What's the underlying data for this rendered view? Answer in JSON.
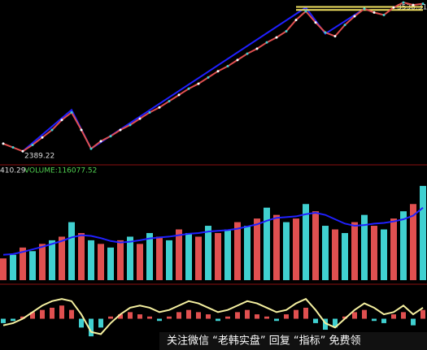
{
  "chart_data": [
    {
      "type": "line",
      "categories": [
        null,
        null,
        null,
        null,
        null,
        null,
        null,
        null,
        null,
        null,
        null,
        null,
        null,
        null,
        null,
        null,
        null,
        null,
        null,
        null,
        null,
        null,
        null,
        null,
        null,
        null,
        null,
        null,
        null,
        null,
        null,
        null,
        null,
        null,
        null,
        null,
        null,
        null,
        null,
        null,
        null,
        null,
        null,
        null
      ],
      "ylim": [
        2300,
        3600
      ],
      "annotations": [
        "2389.22",
        "3530.31"
      ],
      "series": [
        {
          "name": "price",
          "color": "#e05050",
          "values": [
            2450,
            2420,
            2389,
            2440,
            2500,
            2560,
            2640,
            2700,
            2560,
            2410,
            2470,
            2510,
            2560,
            2600,
            2650,
            2700,
            2740,
            2790,
            2840,
            2890,
            2930,
            2980,
            3030,
            3070,
            3120,
            3170,
            3210,
            3260,
            3300,
            3350,
            3440,
            3510,
            3420,
            3340,
            3310,
            3400,
            3470,
            3530,
            3500,
            3480,
            3540,
            3580,
            3560,
            3570
          ]
        }
      ],
      "lines": [
        {
          "color": "#2020ff",
          "x": [
            2,
            7,
            9,
            31,
            33,
            37
          ],
          "values": [
            2389,
            2720,
            2410,
            3540,
            3330,
            3530
          ]
        },
        {
          "color": "#f0e060",
          "x": [
            30,
            43
          ],
          "values": [
            3545,
            3545
          ]
        },
        {
          "color": "#f0e060",
          "x": [
            30,
            43
          ],
          "values": [
            3520,
            3520
          ]
        }
      ]
    },
    {
      "type": "bar",
      "header": [
        "410.29",
        "VOLUME:116077.52"
      ],
      "ylim": [
        0,
        280000
      ],
      "series": [
        {
          "name": "volume",
          "colors": [
            "#e05050",
            "#40d0d0"
          ],
          "values": [
            60000,
            70000,
            90000,
            80000,
            100000,
            110000,
            120000,
            160000,
            130000,
            110000,
            100000,
            90000,
            110000,
            120000,
            100000,
            130000,
            120000,
            110000,
            140000,
            130000,
            120000,
            150000,
            130000,
            140000,
            160000,
            150000,
            170000,
            200000,
            180000,
            160000,
            170000,
            210000,
            190000,
            150000,
            140000,
            130000,
            160000,
            180000,
            150000,
            140000,
            170000,
            190000,
            210000,
            260000
          ]
        },
        {
          "name": "ma",
          "color": "#2020ff",
          "values": [
            70000,
            72000,
            78000,
            85000,
            92000,
            100000,
            108000,
            118000,
            124000,
            122000,
            116000,
            108000,
            104000,
            106000,
            110000,
            115000,
            118000,
            120000,
            124000,
            128000,
            130000,
            134000,
            136000,
            138000,
            142000,
            148000,
            154000,
            164000,
            172000,
            174000,
            176000,
            182000,
            186000,
            180000,
            168000,
            156000,
            150000,
            152000,
            156000,
            158000,
            162000,
            168000,
            178000,
            200000
          ]
        }
      ]
    },
    {
      "type": "macd",
      "ylim": [
        -60,
        60
      ],
      "series": [
        {
          "name": "hist",
          "colors": [
            "#e05050",
            "#40d0d0"
          ],
          "values": [
            -10,
            -5,
            5,
            15,
            20,
            25,
            30,
            20,
            -20,
            -40,
            -20,
            5,
            10,
            15,
            10,
            5,
            -5,
            5,
            15,
            20,
            15,
            10,
            -5,
            5,
            15,
            20,
            10,
            5,
            -5,
            10,
            20,
            25,
            -10,
            -25,
            -20,
            5,
            15,
            20,
            -5,
            -10,
            10,
            15,
            -15,
            20
          ]
        },
        {
          "name": "dif",
          "color": "#f5f0a0",
          "values": [
            -15,
            -10,
            0,
            15,
            30,
            40,
            45,
            40,
            10,
            -30,
            -35,
            -10,
            10,
            25,
            30,
            25,
            15,
            20,
            30,
            40,
            35,
            25,
            15,
            20,
            30,
            40,
            35,
            25,
            15,
            20,
            35,
            45,
            20,
            -10,
            -20,
            0,
            20,
            35,
            25,
            10,
            15,
            30,
            10,
            25
          ]
        }
      ]
    }
  ],
  "watermark": "关注微信 “老韩实盘” 回复 “指标” 免费领"
}
